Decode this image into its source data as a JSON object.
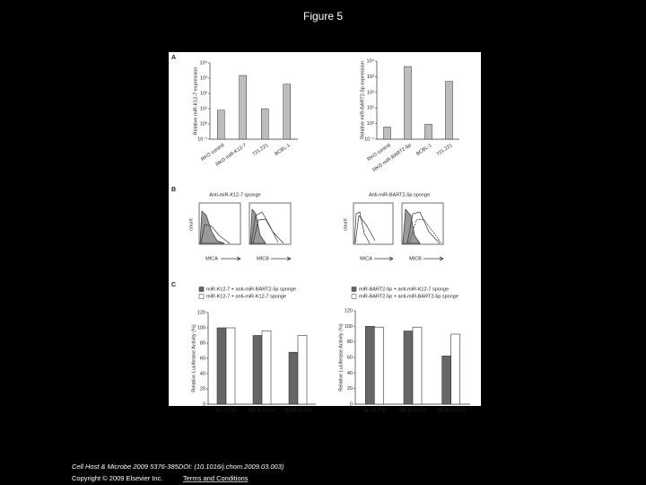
{
  "header": {
    "title": "Figure 5"
  },
  "panels": {
    "labels": [
      "A",
      "B",
      "C"
    ],
    "b": {
      "titles": [
        "Anti-miR-K12-7 sponge",
        "Anti-miR-BART2-5p sponge"
      ],
      "x_labels": [
        "MICA",
        "MICB",
        "MICA",
        "MICB"
      ],
      "y_label": "count"
    }
  },
  "chart_data": [
    {
      "type": "bar",
      "y_label": "Relative miR-K12-7 expression",
      "scale": "log",
      "color": "#bdbdbd",
      "categories": [
        "RKO control",
        "RKO miR-K12-7",
        "721.221",
        "BCBL-1"
      ],
      "values": [
        8,
        1500,
        10,
        400
      ],
      "ylim": [
        0.1,
        10000
      ],
      "yticks": [
        {
          "value": 0.1,
          "label": "10⁻¹"
        },
        {
          "value": 1,
          "label": "10⁰"
        },
        {
          "value": 10,
          "label": "10¹"
        },
        {
          "value": 100,
          "label": "10²"
        },
        {
          "value": 1000,
          "label": "10³"
        },
        {
          "value": 10000,
          "label": "10⁴"
        }
      ]
    },
    {
      "type": "bar",
      "y_label": "Relative miR-BART2-5p expression",
      "scale": "log",
      "color": "#bdbdbd",
      "categories": [
        "RKO control",
        "RKO miR-BART2-5p",
        "BCBL-1",
        "721.221"
      ],
      "values": [
        0.6,
        4500,
        0.9,
        500
      ],
      "ylim": [
        0.1,
        10000
      ],
      "yticks": [
        {
          "value": 0.1,
          "label": "10⁻¹"
        },
        {
          "value": 1,
          "label": "10⁰"
        },
        {
          "value": 10,
          "label": "10¹"
        },
        {
          "value": 100,
          "label": "10²"
        },
        {
          "value": 1000,
          "label": "10³"
        },
        {
          "value": 10000,
          "label": "10⁴"
        }
      ]
    },
    {
      "type": "grouped-bar",
      "y_label": "Relative Luciferase Activity (%)",
      "categories": [
        "No 3'UTR",
        "MICA 3'UTR",
        "MICB 3'UTR"
      ],
      "series": [
        {
          "name": "miR-K12-7 + anti-miR-BART2-5p sponge",
          "color": "#666666",
          "values": [
            100,
            90,
            68
          ]
        },
        {
          "name": "miR-K12-7 + anti-miR-K12-7 sponge",
          "color": "#ffffff",
          "values": [
            100,
            96,
            90
          ]
        }
      ],
      "ylim": [
        0,
        120
      ],
      "yticks": [
        0,
        20,
        40,
        60,
        80,
        100,
        120
      ]
    },
    {
      "type": "grouped-bar",
      "y_label": "Relative Luciferase Activity (%)",
      "categories": [
        "No 3'UTR",
        "MICA 3'UTR",
        "MICB 3'UTR"
      ],
      "series": [
        {
          "name": "miR-BART2-5p + anti-miR-K12-7 sponge",
          "color": "#666666",
          "values": [
            100,
            94,
            62
          ]
        },
        {
          "name": "miR-BART2-5p + anti-miR-BART2-5p sponge",
          "color": "#ffffff",
          "values": [
            99,
            99,
            90
          ]
        }
      ],
      "ylim": [
        0,
        120
      ],
      "yticks": [
        0,
        20,
        40,
        60,
        80,
        100,
        120
      ]
    }
  ],
  "footer": {
    "citation": "Cell Host & Microbe 2009 5376-385DOI: (10.1016/j.chom.2009.03.003)",
    "copyright": "Copyright © 2009 Elsevier Inc.",
    "link": "Terms and Conditions"
  }
}
